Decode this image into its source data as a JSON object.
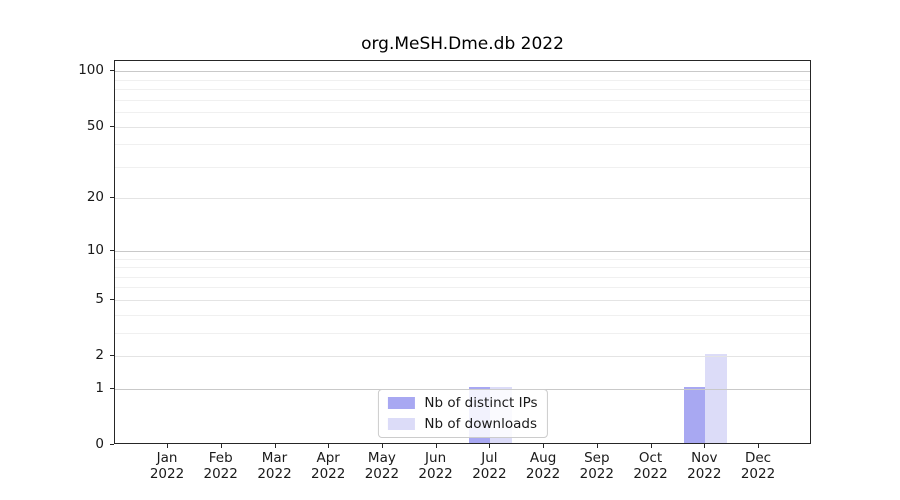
{
  "figure": {
    "background": "#ffffff"
  },
  "chart_data": {
    "type": "bar",
    "title": "org.MeSH.Dme.db 2022",
    "categories": [
      "Jan",
      "Feb",
      "Mar",
      "Apr",
      "May",
      "Jun",
      "Jul",
      "Aug",
      "Sep",
      "Oct",
      "Nov",
      "Dec"
    ],
    "category_year": "2022",
    "series": [
      {
        "name": "Nb of distinct IPs",
        "color": "#a8a8f2",
        "values": [
          0,
          0,
          0,
          0,
          0,
          0,
          1,
          0,
          0,
          0,
          1,
          0
        ]
      },
      {
        "name": "Nb of downloads",
        "color": "#dcdcf8",
        "values": [
          0,
          0,
          0,
          0,
          0,
          0,
          1,
          0,
          0,
          0,
          2,
          0
        ]
      }
    ],
    "xlabel": "",
    "ylabel": "",
    "y_axis": {
      "scale": "log10(value+1)",
      "ticks": [
        0,
        1,
        2,
        5,
        10,
        20,
        50,
        100
      ],
      "decade_ticks": [
        1,
        10,
        100
      ],
      "minor_ticks": [
        3,
        4,
        6,
        7,
        8,
        9,
        30,
        40,
        60,
        70,
        80,
        90
      ],
      "top_value": 113.6
    },
    "grid": true,
    "legend": {
      "position": "lower center"
    }
  },
  "colors": {
    "grid_major": "#c9c9c9",
    "grid_mid": "#e4e4e4",
    "grid_minor": "#f0f0f0",
    "spine": "#262626",
    "text": "#1a1a1a",
    "legend_border": "#cccccc"
  }
}
